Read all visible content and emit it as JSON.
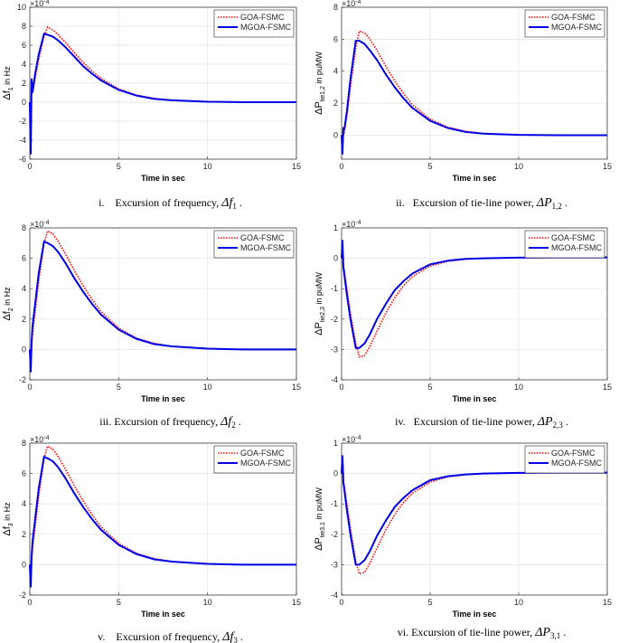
{
  "chart_data": [
    {
      "type": "line",
      "x": [
        0,
        0.05,
        0.1,
        0.15,
        0.3,
        0.5,
        0.8,
        1,
        1.3,
        1.6,
        2,
        2.5,
        3,
        3.5,
        4,
        5,
        6,
        7,
        8,
        10,
        12,
        15
      ],
      "xlim": [
        0,
        15
      ],
      "xticks": [
        0,
        5,
        10,
        15
      ],
      "ylim": [
        -6,
        10
      ],
      "yticks": [
        -6,
        -4,
        -2,
        0,
        2,
        4,
        6,
        8,
        10
      ],
      "xlabel": "Time in sec",
      "ylabel": {
        "main": "Δf",
        "sub": "1",
        "rest": " in Hz"
      },
      "yscale": {
        "base": "×10",
        "exp": "-4"
      },
      "grid": true,
      "legend": "northeast",
      "caption": {
        "prefix": "i.    Excursion of frequency, ",
        "symbol": "Δf",
        "sub": "1",
        "suffix": " ."
      },
      "series": [
        {
          "name": "GOA-FSMC",
          "color": "#ff0000",
          "style": "dotted",
          "values": [
            0,
            -5,
            2,
            1,
            2.5,
            4.5,
            7,
            7.9,
            7.6,
            7.1,
            6.3,
            5.2,
            4.2,
            3.3,
            2.5,
            1.4,
            0.75,
            0.4,
            0.2,
            0.05,
            0,
            0
          ]
        },
        {
          "name": "MGOA-FSMC",
          "color": "#0000e6",
          "style": "solid",
          "values": [
            0,
            -5.5,
            2.5,
            1,
            3,
            5,
            7.2,
            7.1,
            6.9,
            6.5,
            5.8,
            4.8,
            3.8,
            3,
            2.3,
            1.3,
            0.7,
            0.35,
            0.2,
            0.05,
            0,
            0
          ]
        }
      ]
    },
    {
      "type": "line",
      "x": [
        0,
        0.05,
        0.1,
        0.15,
        0.3,
        0.5,
        0.8,
        1,
        1.3,
        1.6,
        2,
        2.5,
        3,
        3.5,
        4,
        5,
        6,
        7,
        8,
        10,
        12,
        15
      ],
      "xlim": [
        0,
        15
      ],
      "xticks": [
        0,
        5,
        10,
        15
      ],
      "ylim": [
        -1.5,
        8
      ],
      "yticks": [
        0,
        2,
        4,
        6,
        8
      ],
      "xlabel": "Time in sec",
      "ylabel": {
        "main": "ΔP",
        "sub": "tie1,2",
        "rest": " in puMW"
      },
      "yscale": {
        "base": "×10",
        "exp": "-4"
      },
      "grid": true,
      "legend": "northeast",
      "caption": {
        "prefix": "ii.   Excursion of tie-line power, ",
        "symbol": "ΔP",
        "sub": "1,2",
        "suffix": " ."
      },
      "series": [
        {
          "name": "GOA-FSMC",
          "color": "#ff0000",
          "style": "dotted",
          "values": [
            0,
            -1,
            0.3,
            0.2,
            1.2,
            3,
            5.5,
            6.5,
            6.4,
            6,
            5.3,
            4.3,
            3.4,
            2.6,
            1.9,
            1,
            0.5,
            0.25,
            0.1,
            0.02,
            0,
            0
          ]
        },
        {
          "name": "MGOA-FSMC",
          "color": "#0000e6",
          "style": "solid",
          "values": [
            0,
            -1.2,
            0.5,
            0.3,
            1.5,
            3.5,
            5.9,
            5.9,
            5.7,
            5.3,
            4.7,
            3.8,
            3,
            2.3,
            1.7,
            0.9,
            0.45,
            0.2,
            0.1,
            0.02,
            0,
            0
          ]
        }
      ]
    },
    {
      "type": "line",
      "x": [
        0,
        0.05,
        0.1,
        0.15,
        0.3,
        0.5,
        0.8,
        1,
        1.3,
        1.6,
        2,
        2.5,
        3,
        3.5,
        4,
        5,
        6,
        7,
        8,
        10,
        12,
        15
      ],
      "xlim": [
        0,
        15
      ],
      "xticks": [
        0,
        5,
        10,
        15
      ],
      "ylim": [
        -2,
        8
      ],
      "yticks": [
        -2,
        0,
        2,
        4,
        6,
        8
      ],
      "xlabel": "Time in sec",
      "ylabel": {
        "main": "Δf",
        "sub": "2",
        "rest": " in Hz"
      },
      "yscale": {
        "base": "×10",
        "exp": "-4"
      },
      "grid": true,
      "legend": "northeast",
      "caption": {
        "prefix": "iii. Excursion of frequency, ",
        "symbol": "Δf",
        "sub": "2",
        "suffix": " ."
      },
      "series": [
        {
          "name": "GOA-FSMC",
          "color": "#ff0000",
          "style": "dotted",
          "values": [
            0,
            -1.3,
            0.3,
            1,
            2.5,
            4.5,
            7,
            7.8,
            7.6,
            7.1,
            6.3,
            5.2,
            4.2,
            3.3,
            2.5,
            1.4,
            0.75,
            0.4,
            0.2,
            0.05,
            0,
            0
          ]
        },
        {
          "name": "MGOA-FSMC",
          "color": "#0000e6",
          "style": "solid",
          "values": [
            0,
            -1.5,
            0.5,
            1.5,
            3,
            5,
            7.1,
            7,
            6.8,
            6.4,
            5.7,
            4.7,
            3.8,
            3,
            2.3,
            1.3,
            0.7,
            0.35,
            0.2,
            0.05,
            0,
            0
          ]
        }
      ]
    },
    {
      "type": "line",
      "x": [
        0,
        0.05,
        0.1,
        0.15,
        0.3,
        0.5,
        0.8,
        1,
        1.3,
        1.6,
        2,
        2.5,
        3,
        3.5,
        4,
        5,
        6,
        7,
        8,
        10,
        12,
        15
      ],
      "xlim": [
        0,
        15
      ],
      "xticks": [
        0,
        5,
        10,
        15
      ],
      "ylim": [
        -4,
        1
      ],
      "yticks": [
        -4,
        -3,
        -2,
        -1,
        0,
        1
      ],
      "xlabel": "Time in sec",
      "ylabel": {
        "main": "ΔP",
        "sub": "tie2,3",
        "rest": " in puMW"
      },
      "yscale": {
        "base": "×10",
        "exp": "-4"
      },
      "grid": true,
      "legend": "northeast",
      "caption": {
        "prefix": "iv.   Excursion of tie-line power, ",
        "symbol": "ΔP",
        "sub": "2,3",
        "suffix": " ."
      },
      "series": [
        {
          "name": "GOA-FSMC",
          "color": "#ff0000",
          "style": "dotted",
          "values": [
            0,
            0.5,
            -0.2,
            -0.4,
            -1,
            -1.8,
            -2.8,
            -3.25,
            -3.2,
            -2.9,
            -2.4,
            -1.8,
            -1.3,
            -0.9,
            -0.6,
            -0.25,
            -0.1,
            -0.03,
            0,
            0.02,
            0.03,
            0.03
          ]
        },
        {
          "name": "MGOA-FSMC",
          "color": "#0000e6",
          "style": "solid",
          "values": [
            0,
            0.6,
            -0.3,
            -0.5,
            -1.2,
            -2,
            -2.95,
            -2.95,
            -2.8,
            -2.5,
            -2,
            -1.5,
            -1.05,
            -0.75,
            -0.5,
            -0.2,
            -0.08,
            -0.02,
            0,
            0.02,
            0.03,
            0.03
          ]
        }
      ]
    },
    {
      "type": "line",
      "x": [
        0,
        0.05,
        0.1,
        0.15,
        0.3,
        0.5,
        0.8,
        1,
        1.3,
        1.6,
        2,
        2.5,
        3,
        3.5,
        4,
        5,
        6,
        7,
        8,
        10,
        12,
        15
      ],
      "xlim": [
        0,
        15
      ],
      "xticks": [
        0,
        5,
        10,
        15
      ],
      "ylim": [
        -2,
        8
      ],
      "yticks": [
        -2,
        0,
        2,
        4,
        6,
        8
      ],
      "xlabel": "Time in sec",
      "ylabel": {
        "main": "Δf",
        "sub": "3",
        "rest": " in Hz"
      },
      "yscale": {
        "base": "×10",
        "exp": "-4"
      },
      "grid": true,
      "legend": "northeast",
      "caption": {
        "prefix": "v.    Excursion of frequency, ",
        "symbol": "Δf",
        "sub": "3",
        "suffix": " ."
      },
      "series": [
        {
          "name": "GOA-FSMC",
          "color": "#ff0000",
          "style": "dotted",
          "values": [
            0,
            -1.3,
            0.3,
            1,
            2.5,
            4.5,
            7,
            7.8,
            7.6,
            7.1,
            6.3,
            5.2,
            4.2,
            3.3,
            2.5,
            1.4,
            0.75,
            0.4,
            0.2,
            0.05,
            0,
            0
          ]
        },
        {
          "name": "MGOA-FSMC",
          "color": "#0000e6",
          "style": "solid",
          "values": [
            0,
            -1.5,
            0.5,
            1.5,
            3,
            5,
            7.1,
            7,
            6.8,
            6.4,
            5.7,
            4.7,
            3.8,
            3,
            2.3,
            1.3,
            0.7,
            0.35,
            0.2,
            0.05,
            0,
            0
          ]
        }
      ]
    },
    {
      "type": "line",
      "x": [
        0,
        0.05,
        0.1,
        0.15,
        0.3,
        0.5,
        0.8,
        1,
        1.3,
        1.6,
        2,
        2.5,
        3,
        3.5,
        4,
        5,
        6,
        7,
        8,
        10,
        12,
        15
      ],
      "xlim": [
        0,
        15
      ],
      "xticks": [
        0,
        5,
        10,
        15
      ],
      "ylim": [
        -4,
        1
      ],
      "yticks": [
        -4,
        -3,
        -2,
        -1,
        0,
        1
      ],
      "xlabel": "Time in sec",
      "ylabel": {
        "main": "ΔP",
        "sub": "tie3,1",
        "rest": " in puMW"
      },
      "yscale": {
        "base": "×10",
        "exp": "-4"
      },
      "grid": true,
      "legend": "northeast",
      "caption": {
        "prefix": "vi. Excursion of tie-line power, ",
        "symbol": "ΔP",
        "sub": "3,1",
        "suffix": " ."
      },
      "series": [
        {
          "name": "GOA-FSMC",
          "color": "#ff0000",
          "style": "dotted",
          "values": [
            0,
            0.5,
            -0.2,
            -0.4,
            -1,
            -1.8,
            -2.9,
            -3.3,
            -3.25,
            -2.95,
            -2.45,
            -1.85,
            -1.35,
            -0.95,
            -0.65,
            -0.28,
            -0.11,
            -0.04,
            0,
            0.02,
            0.03,
            0.03
          ]
        },
        {
          "name": "MGOA-FSMC",
          "color": "#0000e6",
          "style": "solid",
          "values": [
            0,
            0.6,
            -0.3,
            -0.5,
            -1.2,
            -2,
            -3,
            -3,
            -2.85,
            -2.55,
            -2.05,
            -1.55,
            -1.1,
            -0.8,
            -0.55,
            -0.22,
            -0.09,
            -0.03,
            0,
            0.02,
            0.03,
            0.03
          ]
        }
      ]
    }
  ]
}
